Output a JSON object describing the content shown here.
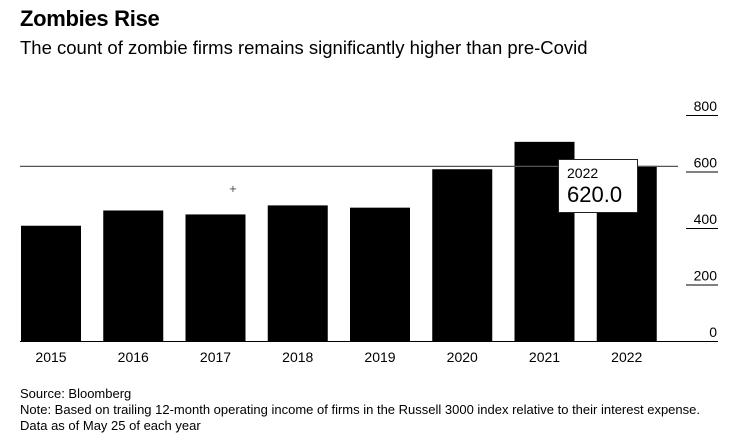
{
  "header": {
    "title": "Zombies Rise",
    "subtitle": "The count of zombie firms remains significantly higher than pre-Covid"
  },
  "chart_data": {
    "type": "bar",
    "categories": [
      "2015",
      "2016",
      "2017",
      "2018",
      "2019",
      "2020",
      "2021",
      "2022"
    ],
    "values": [
      408,
      462,
      448,
      480,
      472,
      608,
      705,
      620
    ],
    "ylim": [
      0,
      800
    ],
    "y_ticks": [
      "0",
      "200",
      "400",
      "600",
      "800"
    ],
    "y_axis_position": "right",
    "grid": false,
    "bar_color": "#000000",
    "highlight": {
      "category": "2022",
      "value": 620.0,
      "label_year": "2022",
      "label_value": "620.0"
    }
  },
  "footer": {
    "source": "Source: Bloomberg",
    "note": "Note: Based on trailing 12-month operating income of firms in the Russell 3000 index relative to their interest expense. Data as of May 25 of each year"
  }
}
